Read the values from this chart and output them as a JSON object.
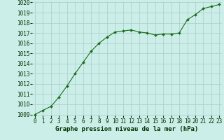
{
  "x": [
    0,
    1,
    2,
    3,
    4,
    5,
    6,
    7,
    8,
    9,
    10,
    11,
    12,
    13,
    14,
    15,
    16,
    17,
    18,
    19,
    20,
    21,
    22,
    23
  ],
  "y": [
    1009.0,
    1009.4,
    1009.8,
    1010.7,
    1011.8,
    1013.0,
    1014.1,
    1015.2,
    1016.0,
    1016.6,
    1017.1,
    1017.2,
    1017.3,
    1017.1,
    1017.0,
    1016.8,
    1016.9,
    1016.9,
    1017.0,
    1018.3,
    1018.8,
    1019.4,
    1019.6,
    1019.8
  ],
  "ylim": [
    1009,
    1020
  ],
  "xlim": [
    -0.3,
    23.3
  ],
  "yticks": [
    1009,
    1010,
    1011,
    1012,
    1013,
    1014,
    1015,
    1016,
    1017,
    1018,
    1019,
    1020
  ],
  "xticks": [
    0,
    1,
    2,
    3,
    4,
    5,
    6,
    7,
    8,
    9,
    10,
    11,
    12,
    13,
    14,
    15,
    16,
    17,
    18,
    19,
    20,
    21,
    22,
    23
  ],
  "line_color": "#1a6b1a",
  "marker_color": "#1a6b1a",
  "bg_color": "#cceee8",
  "grid_color": "#aacccc",
  "xlabel": "Graphe pression niveau de la mer (hPa)",
  "xlabel_color": "#003300",
  "tick_fontsize": 5.5,
  "label_fontsize": 6.5,
  "marker": "D",
  "marker_size": 2.0
}
